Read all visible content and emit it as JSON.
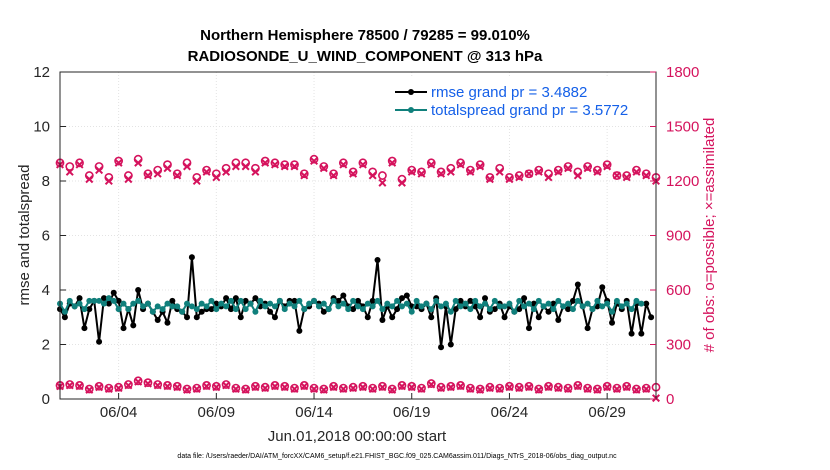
{
  "chart_data": {
    "type": "line",
    "title_line1": "Northern Hemisphere 78500 / 79285 = 99.010%",
    "title_line2": "RADIOSONDE_U_WIND_COMPONENT @ 313 hPa",
    "xlabel": "Jun.01,2018 00:00:00 start",
    "ylabel_left": "rmse and totalspread",
    "ylabel_right": "# of obs: o=possible; ×=assimilated",
    "xlim": [
      1,
      31.5
    ],
    "ylim_left": [
      0,
      12
    ],
    "ylim_right": [
      0,
      1800
    ],
    "x_ticks": [
      {
        "x": 4,
        "label": "06/04"
      },
      {
        "x": 9,
        "label": "06/09"
      },
      {
        "x": 14,
        "label": "06/14"
      },
      {
        "x": 19,
        "label": "06/19"
      },
      {
        "x": 24,
        "label": "06/24"
      },
      {
        "x": 29,
        "label": "06/29"
      }
    ],
    "y_ticks_left": [
      "0",
      "2",
      "4",
      "6",
      "8",
      "10",
      "12"
    ],
    "y_ticks_right": [
      "0",
      "300",
      "600",
      "900",
      "1200",
      "1500",
      "1800"
    ],
    "colors": {
      "rmse": "#000000",
      "spread": "#10807c",
      "obs": "#d5135d",
      "legend_text": "#1560e8"
    },
    "legend": [
      {
        "name": "rmse grand pr = 3.4882"
      },
      {
        "name": "totalspread grand pr = 3.5772"
      }
    ],
    "series": [
      {
        "name": "rmse",
        "axis": "left",
        "start": 1,
        "step": 0.25,
        "values": [
          3.3,
          3.0,
          3.5,
          3.4,
          3.7,
          2.6,
          3.3,
          3.6,
          2.1,
          3.7,
          3.5,
          3.9,
          3.6,
          2.6,
          3.3,
          2.7,
          4.0,
          3.3,
          3.5,
          3.2,
          2.9,
          3.2,
          2.8,
          3.6,
          3.3,
          3.2,
          3.0,
          5.2,
          3.0,
          3.2,
          3.3,
          3.3,
          3.5,
          3.4,
          3.7,
          3.3,
          3.7,
          3.0,
          3.6,
          3.5,
          3.7,
          3.4,
          3.5,
          3.2,
          3.0,
          3.6,
          3.4,
          3.6,
          3.6,
          2.5,
          3.3,
          3.4,
          3.6,
          3.5,
          3.2,
          3.3,
          3.7,
          3.6,
          3.8,
          3.4,
          3.3,
          3.6,
          3.4,
          3.0,
          3.6,
          5.1,
          2.9,
          3.4,
          3.0,
          3.3,
          3.7,
          3.8,
          3.4,
          3.4,
          3.3,
          3.5,
          3.0,
          3.7,
          1.9,
          3.4,
          2.0,
          3.3,
          3.6,
          3.4,
          3.6,
          3.4,
          3.0,
          3.7,
          3.2,
          3.3,
          3.5,
          3.0,
          3.4,
          3.2,
          3.3,
          3.7,
          2.6,
          3.5,
          3.0,
          3.4,
          3.2,
          3.5,
          2.9,
          3.4,
          3.3,
          3.6,
          4.2,
          3.4,
          2.6,
          3.3,
          3.4,
          4.1,
          3.6,
          2.8,
          3.5,
          3.3,
          3.6,
          2.4,
          3.5,
          2.4,
          3.5,
          3.0
        ]
      },
      {
        "name": "totalspread",
        "axis": "left",
        "start": 1,
        "step": 0.25,
        "values": [
          3.5,
          3.2,
          3.6,
          3.4,
          3.5,
          3.3,
          3.6,
          3.6,
          3.6,
          3.5,
          3.7,
          3.6,
          3.3,
          3.5,
          3.3,
          3.5,
          3.6,
          3.4,
          3.5,
          3.2,
          3.4,
          3.3,
          3.5,
          3.4,
          3.4,
          3.2,
          3.5,
          3.4,
          3.3,
          3.5,
          3.4,
          3.6,
          3.3,
          3.5,
          3.4,
          3.6,
          3.3,
          3.6,
          3.3,
          3.5,
          3.2,
          3.6,
          3.4,
          3.5,
          3.4,
          3.6,
          3.3,
          3.5,
          3.4,
          3.6,
          3.3,
          3.5,
          3.6,
          3.4,
          3.5,
          3.3,
          3.6,
          3.4,
          3.5,
          3.3,
          3.6,
          3.4,
          3.3,
          3.5,
          3.4,
          3.6,
          3.3,
          3.5,
          3.4,
          3.6,
          3.4,
          3.5,
          3.2,
          3.6,
          3.4,
          3.5,
          3.3,
          3.6,
          3.4,
          3.5,
          3.2,
          3.6,
          3.4,
          3.5,
          3.3,
          3.6,
          3.4,
          3.5,
          3.3,
          3.6,
          3.4,
          3.4,
          3.5,
          3.2,
          3.6,
          3.4,
          3.5,
          3.3,
          3.6,
          3.4,
          3.5,
          3.3,
          3.6,
          3.4,
          3.5,
          3.3,
          3.6,
          3.4,
          3.5,
          3.3,
          3.6,
          3.4,
          3.5,
          3.2,
          3.6,
          3.4,
          3.5,
          3.3,
          3.6,
          3.5
        ]
      },
      {
        "name": "obs_possible",
        "axis": "right",
        "start": 1,
        "step": 0.5,
        "values": [
          1300,
          1280,
          1300,
          1230,
          1280,
          1220,
          1310,
          1230,
          1320,
          1240,
          1260,
          1290,
          1240,
          1300,
          1220,
          1260,
          1240,
          1270,
          1300,
          1300,
          1270,
          1310,
          1300,
          1290,
          1290,
          1240,
          1320,
          1280,
          1240,
          1300,
          1250,
          1300,
          1250,
          1230,
          1310,
          1210,
          1260,
          1250,
          1300,
          1250,
          1270,
          1300,
          1260,
          1290,
          1220,
          1270,
          1220,
          1230,
          1240,
          1260,
          1240,
          1260,
          1280,
          1250,
          1280,
          1260,
          1290,
          1230,
          1230,
          1260,
          1240,
          1220
        ]
      },
      {
        "name": "obs_assimilated",
        "axis": "right",
        "start": 1,
        "step": 0.5,
        "values": [
          1290,
          1250,
          1290,
          1210,
          1260,
          1200,
          1300,
          1210,
          1300,
          1230,
          1240,
          1270,
          1230,
          1280,
          1200,
          1250,
          1220,
          1250,
          1280,
          1280,
          1250,
          1300,
          1290,
          1280,
          1280,
          1230,
          1310,
          1270,
          1230,
          1290,
          1240,
          1290,
          1230,
          1190,
          1300,
          1190,
          1250,
          1240,
          1290,
          1240,
          1250,
          1290,
          1250,
          1280,
          1210,
          1250,
          1210,
          1220,
          1240,
          1250,
          1220,
          1250,
          1270,
          1230,
          1270,
          1250,
          1280,
          1230,
          1220,
          1250,
          1230,
          1200
        ]
      },
      {
        "name": "obs_possible_low",
        "axis": "right",
        "start": 1,
        "step": 0.5,
        "values": [
          75,
          80,
          75,
          55,
          70,
          60,
          65,
          80,
          100,
          90,
          80,
          75,
          70,
          55,
          60,
          75,
          70,
          80,
          60,
          55,
          70,
          65,
          75,
          70,
          60,
          75,
          60,
          55,
          70,
          60,
          65,
          70,
          60,
          70,
          55,
          75,
          70,
          60,
          85,
          65,
          70,
          75,
          60,
          55,
          65,
          60,
          70,
          65,
          70,
          55,
          70,
          65,
          60,
          75,
          60,
          55,
          70,
          60,
          70,
          55,
          60,
          65
        ]
      },
      {
        "name": "obs_assimilated_low",
        "axis": "right",
        "start": 1,
        "step": 0.5,
        "values": [
          70,
          75,
          70,
          50,
          65,
          55,
          60,
          75,
          95,
          85,
          75,
          70,
          65,
          50,
          55,
          70,
          65,
          75,
          55,
          50,
          65,
          60,
          70,
          65,
          55,
          70,
          55,
          50,
          65,
          55,
          60,
          65,
          55,
          65,
          50,
          70,
          65,
          55,
          80,
          60,
          65,
          70,
          55,
          50,
          60,
          55,
          65,
          60,
          65,
          50,
          65,
          60,
          55,
          70,
          55,
          50,
          65,
          55,
          65,
          50,
          55,
          5
        ]
      }
    ]
  },
  "footer": "data file: /Users/raeder/DAI/ATM_forcXX/CAM6_setup/f.e21.FHIST_BGC.f09_025.CAM6assim.011/Diags_NTrS_2018-06/obs_diag_output.nc"
}
